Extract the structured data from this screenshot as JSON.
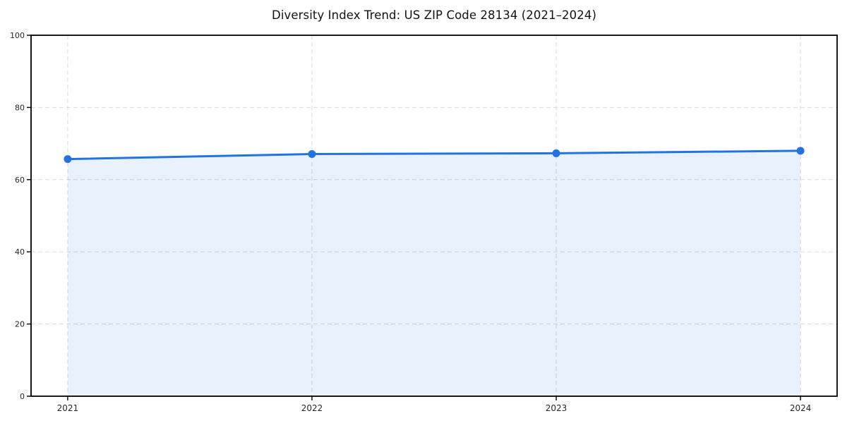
{
  "chart_data": {
    "type": "area",
    "title": "Diversity Index Trend: US ZIP Code 28134 (2021–2024)",
    "x": [
      2021,
      2022,
      2023,
      2024
    ],
    "series": [
      {
        "name": "Diversity Index",
        "values": [
          65.7,
          67.1,
          67.3,
          68.0
        ]
      }
    ],
    "xlabel": "",
    "ylabel": "",
    "xtick_labels": [
      "2021",
      "2022",
      "2023",
      "2024"
    ],
    "yticks": [
      0,
      20,
      40,
      60,
      80,
      100
    ],
    "ylim": [
      0,
      100
    ],
    "x_margin_frac": 0.05,
    "grid": true,
    "grid_style": "dashed",
    "legend": "none",
    "colors": {
      "line": "#2273e2",
      "marker": "#2273e2",
      "fill": "#2273e2",
      "fill_opacity": 0.1,
      "grid": "#d9d9d9",
      "spine": "#000000",
      "tick_text": "#262626",
      "title_text": "#111111",
      "background": "#ffffff"
    }
  }
}
